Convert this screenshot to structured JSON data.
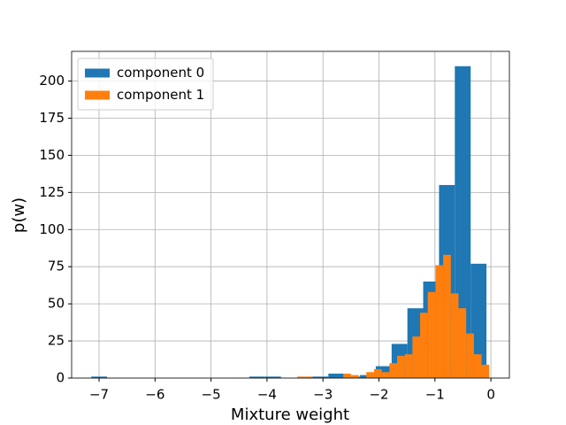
{
  "chart_data": {
    "type": "histogram",
    "xlabel": "Mixture weight",
    "ylabel": "p(w)",
    "xlim": [
      -7.49,
      0.33
    ],
    "ylim": [
      0,
      220
    ],
    "xticks": [
      {
        "value": -7,
        "label": "−7"
      },
      {
        "value": -6,
        "label": "−6"
      },
      {
        "value": -5,
        "label": "−5"
      },
      {
        "value": -4,
        "label": "−4"
      },
      {
        "value": -3,
        "label": "−3"
      },
      {
        "value": -2,
        "label": "−2"
      },
      {
        "value": -1,
        "label": "−1"
      },
      0
    ],
    "yticks": [
      0,
      25,
      50,
      75,
      100,
      125,
      150,
      175,
      200
    ],
    "grid": true,
    "legend": "upper-left",
    "series": [
      {
        "name": "component 0",
        "color": "#1f77b4",
        "bins": [
          -7.14,
          -6.858,
          -6.575,
          -6.293,
          -6.01,
          -5.728,
          -5.446,
          -5.163,
          -4.881,
          -4.598,
          -4.316,
          -4.034,
          -3.751,
          -3.469,
          -3.186,
          -2.904,
          -2.622,
          -2.339,
          -2.057,
          -1.774,
          -1.492,
          -1.21,
          -0.927,
          -0.645,
          -0.362,
          -0.08
        ],
        "values": [
          1,
          0,
          0,
          0,
          0,
          0,
          0,
          0,
          0,
          0,
          1,
          1,
          0,
          0,
          1,
          3,
          1,
          2,
          8,
          23,
          47,
          65,
          130,
          210,
          77
        ]
      },
      {
        "name": "component 1",
        "color": "#ff7f0e",
        "bins": [
          -3.46,
          -3.323,
          -3.186,
          -3.048,
          -2.911,
          -2.774,
          -2.637,
          -2.5,
          -2.362,
          -2.225,
          -2.088,
          -1.951,
          -1.814,
          -1.676,
          -1.539,
          -1.402,
          -1.265,
          -1.128,
          -0.99,
          -0.853,
          -0.716,
          -0.579,
          -0.442,
          -0.304,
          -0.167,
          -0.03
        ],
        "values": [
          1,
          1,
          0,
          0,
          0,
          0,
          3,
          2,
          0,
          4,
          6,
          4,
          10,
          15,
          16,
          28,
          44,
          58,
          76,
          83,
          57,
          47,
          30,
          16,
          9
        ]
      }
    ]
  }
}
